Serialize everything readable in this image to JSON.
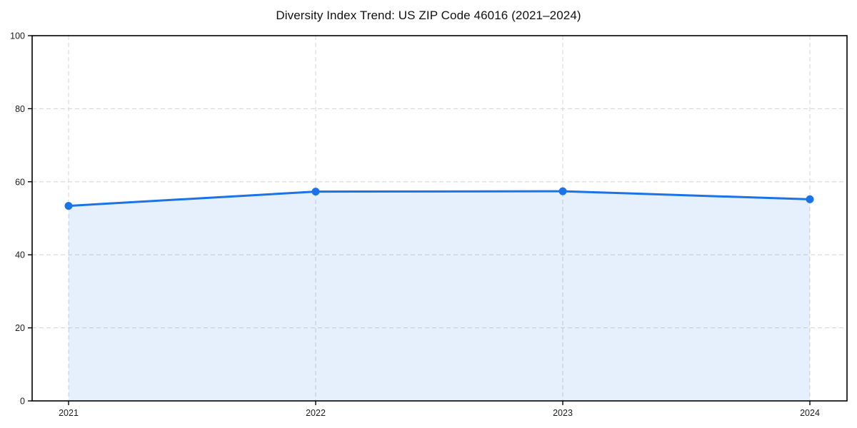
{
  "page": {
    "background": "#ffffff"
  },
  "chart_data": {
    "type": "area",
    "title": "Diversity Index Trend: US ZIP Code 46016 (2021–2024)",
    "x": [
      2021,
      2022,
      2023,
      2024
    ],
    "x_tick_labels": [
      "2021",
      "2022",
      "2023",
      "2024"
    ],
    "values": [
      53.4,
      57.3,
      57.4,
      55.2
    ],
    "xlabel": "",
    "ylabel": "",
    "ylim": [
      0,
      100
    ],
    "y_ticks": [
      0,
      20,
      40,
      60,
      80,
      100
    ],
    "grid": "dashed, horizontal and vertical at ticks",
    "legend": "none",
    "marker": "circle",
    "colors": {
      "line": "#1a73e8",
      "fill": "#1a73e8",
      "fill_opacity": 0.11,
      "grid": "#d8d8d8",
      "spine": "#000000",
      "tick_label": "#1a1a1a",
      "title": "#111111",
      "background": "#ffffff"
    }
  }
}
